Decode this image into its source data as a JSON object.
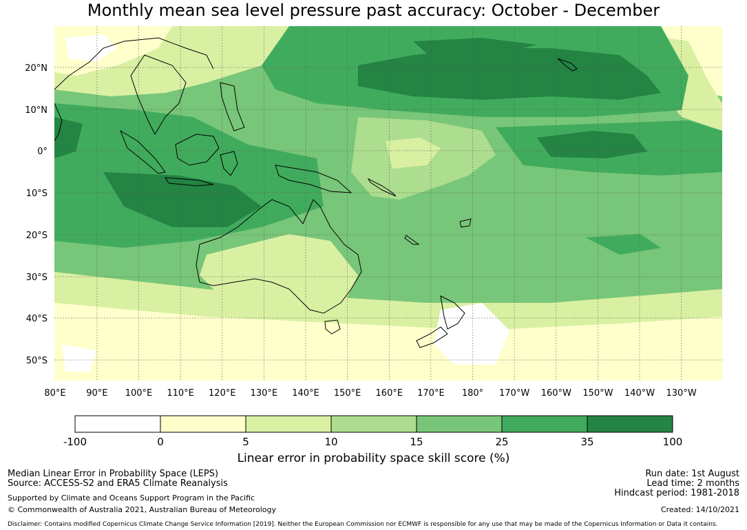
{
  "title": "Monthly mean sea level pressure past accuracy: October - December",
  "map": {
    "lon_labels": [
      "80°E",
      "90°E",
      "100°E",
      "110°E",
      "120°E",
      "130°E",
      "140°E",
      "150°E",
      "160°E",
      "170°E",
      "180°",
      "170°W",
      "160°W",
      "150°W",
      "140°W",
      "130°W"
    ],
    "lat_labels": [
      "20°N",
      "10°N",
      "0°",
      "10°S",
      "20°S",
      "30°S",
      "40°S",
      "50°S"
    ],
    "palette": {
      "-100_0": "#ffffff",
      "0_5": "#ffffcc",
      "5_10": "#d9f0a3",
      "10_15": "#addd8e",
      "15_25": "#78c679",
      "25_35": "#41ab5d",
      "35_100": "#238443"
    },
    "coastline_color": "#000000"
  },
  "colorbar": {
    "ticks": [
      "-100",
      "0",
      "5",
      "10",
      "15",
      "25",
      "35",
      "100"
    ],
    "colors": [
      "#ffffff",
      "#ffffcc",
      "#d9f0a3",
      "#addd8e",
      "#78c679",
      "#41ab5d",
      "#238443"
    ],
    "label": "Linear error in probability space skill score (%)"
  },
  "footer": {
    "left1": "Median Linear Error in Probability Space (LEPS)",
    "left2": "Source: ACCESS-S2 and ERA5 Climate Reanalysis",
    "left3": "Supported by Climate and Oceans Support Program in the Pacific",
    "left4": "© Commonwealth of Australia 2021, Australian Bureau of Meteorology",
    "right1": "Run date: 1st August",
    "right2": "Lead time: 2 months",
    "right3": "Hindcast period: 1981-2018",
    "right4": "Created: 14/10/2021",
    "disclaimer": "Disclaimer: Contains modified Copernicus Climate Change Service Information [2019]. Neither the European Commission nor ECMWF is responsible for any use that may be made of the Copernicus Information or Data it contains."
  }
}
